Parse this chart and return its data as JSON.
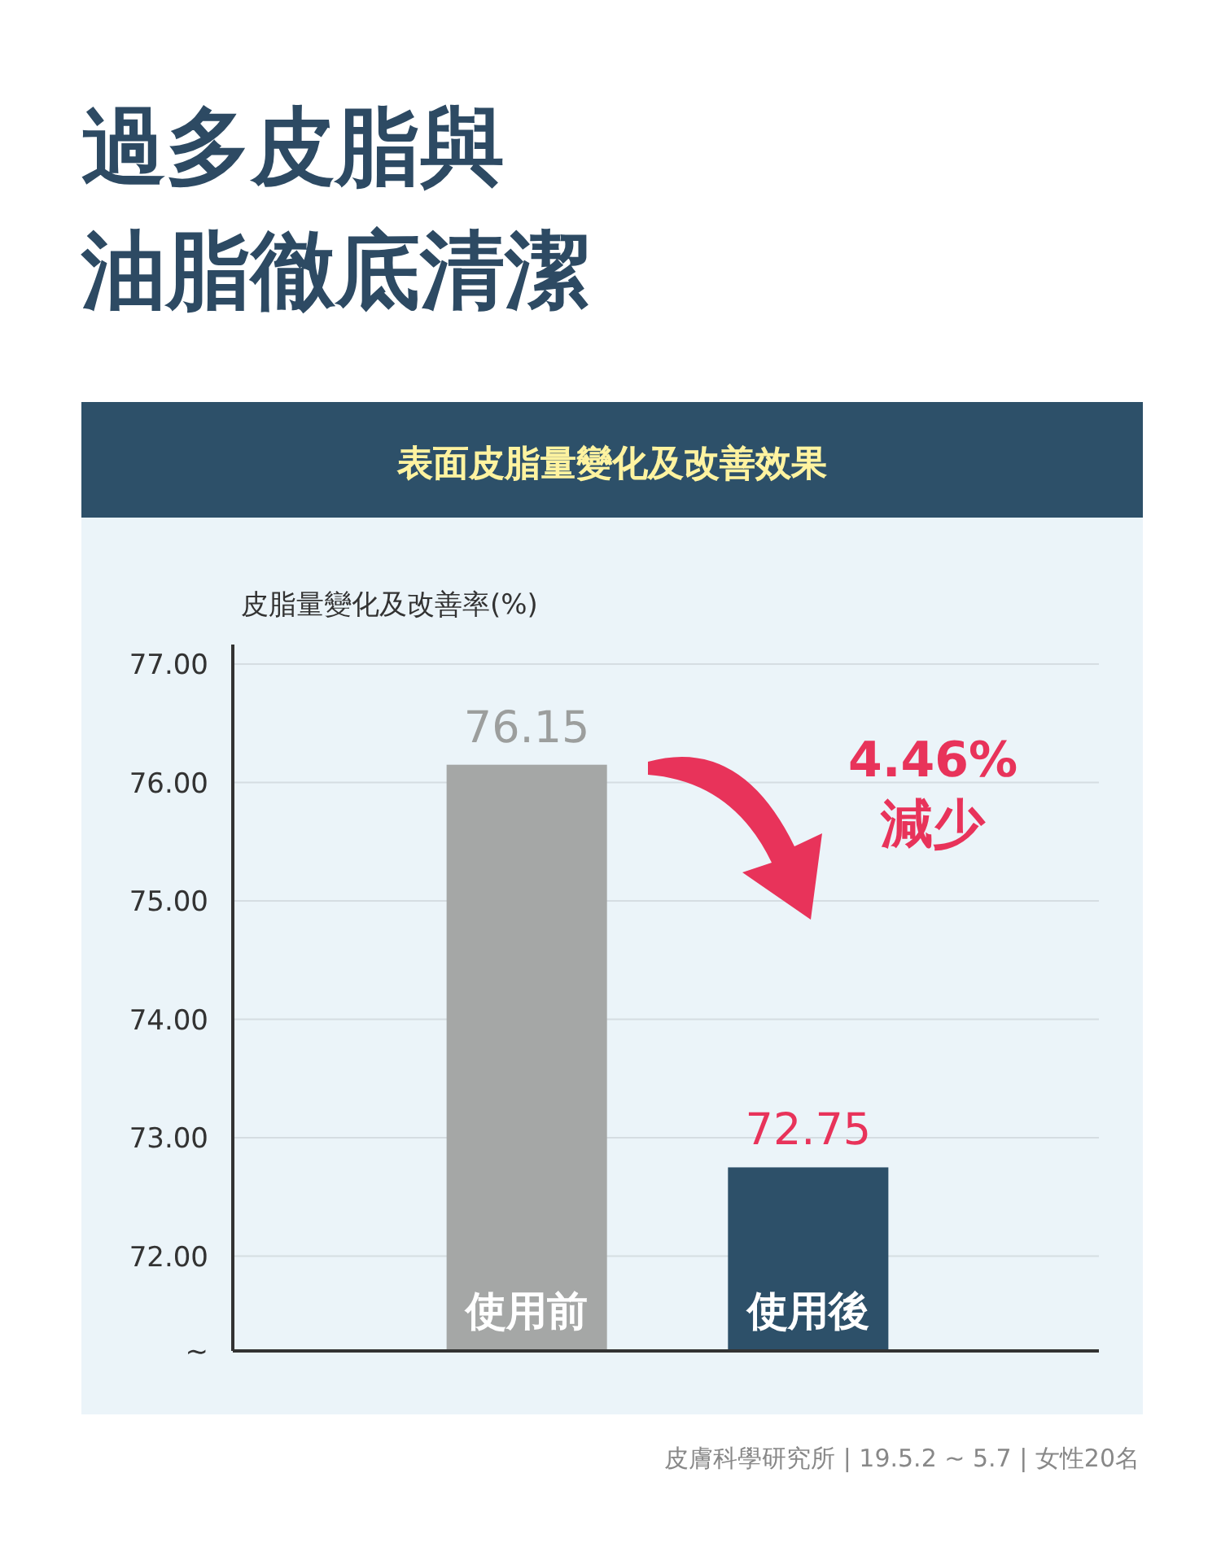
{
  "chart_data": {
    "type": "bar",
    "title": "過多皮脂與油脂徹底清潔",
    "subtitle": "表面皮脂量變化及改善效果",
    "ylabel": "皮脂量變化及改善率(%)",
    "categories": [
      "使用前",
      "使用後"
    ],
    "values": [
      76.15,
      72.75
    ],
    "colors": [
      "#a5a7a6",
      "#2d5069"
    ],
    "ylim": [
      71.2,
      77
    ],
    "yticks": [
      {
        "value": 71.2,
        "label": "~"
      },
      {
        "value": 72,
        "label": "72.00"
      },
      {
        "value": 73,
        "label": "73.00"
      },
      {
        "value": 74,
        "label": "74.00"
      },
      {
        "value": 75,
        "label": "75.00"
      },
      {
        "value": 76,
        "label": "76.00"
      },
      {
        "value": 77,
        "label": "77.00"
      }
    ],
    "grid": "y",
    "data_labels": true,
    "annotations": [
      "4.46%",
      "減少",
      "皮膚科學研究所 | 19.5.2 ~ 5.7 | 女性20名"
    ]
  }
}
